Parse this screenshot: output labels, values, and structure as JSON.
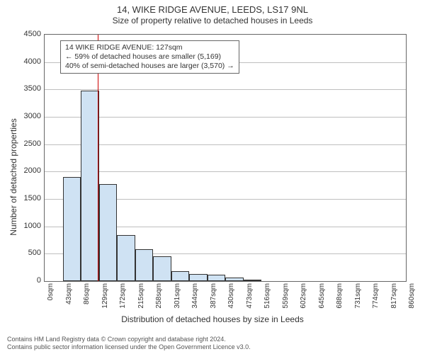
{
  "title": "14, WIKE RIDGE AVENUE, LEEDS, LS17 9NL",
  "subtitle": "Size of property relative to detached houses in Leeds",
  "xlabel": "Distribution of detached houses by size in Leeds",
  "ylabel": "Number of detached properties",
  "chart": {
    "type": "histogram",
    "x_categories": [
      "0sqm",
      "43sqm",
      "86sqm",
      "129sqm",
      "172sqm",
      "215sqm",
      "258sqm",
      "301sqm",
      "344sqm",
      "387sqm",
      "430sqm",
      "473sqm",
      "516sqm",
      "559sqm",
      "602sqm",
      "645sqm",
      "688sqm",
      "731sqm",
      "774sqm",
      "817sqm",
      "860sqm"
    ],
    "values": [
      0,
      1900,
      3480,
      1770,
      840,
      580,
      450,
      180,
      130,
      120,
      60,
      30,
      0,
      0,
      0,
      0,
      0,
      0,
      0,
      0
    ],
    "bar_fill": "#cfe2f3",
    "bar_stroke": "#333333",
    "bar_width_ratio": 1.0,
    "ylim": [
      0,
      4500
    ],
    "ytick_step": 500,
    "grid_color": "#bfbfbf",
    "background_color": "#ffffff",
    "axis_color": "#666666",
    "reference_line": {
      "x_value_sqm": 127,
      "color": "#cc0000"
    }
  },
  "annotation": {
    "lines": [
      "14 WIKE RIDGE AVENUE: 127sqm",
      "← 59% of detached houses are smaller (5,169)",
      "40% of semi-detached houses are larger (3,570) →"
    ],
    "border_color": "#666666",
    "background_color": "#ffffff",
    "fontsize": 10.5
  },
  "credits": [
    "Contains HM Land Registry data © Crown copyright and database right 2024.",
    "Contains public sector information licensed under the Open Government Licence v3.0."
  ]
}
